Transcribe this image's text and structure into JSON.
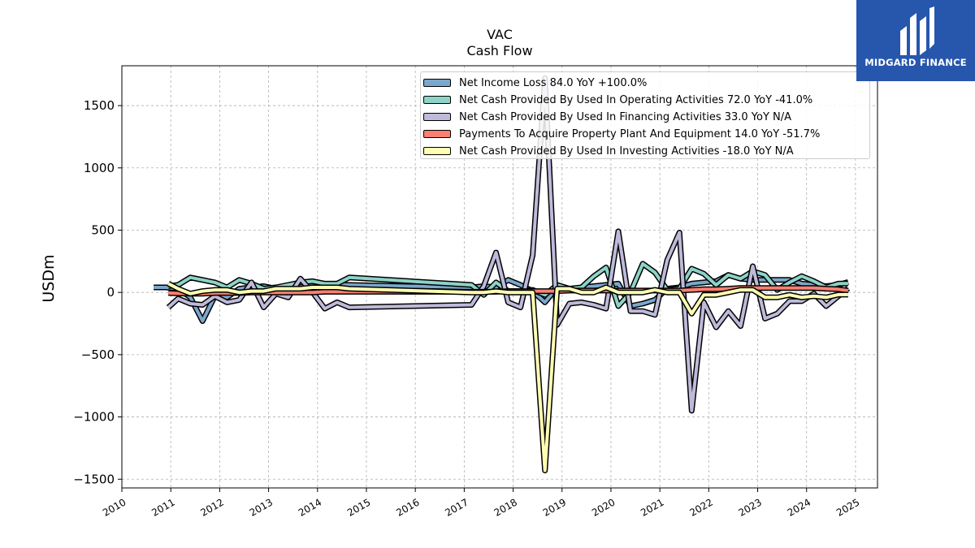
{
  "header": {
    "title": "VAC",
    "subtitle": "Cash Flow"
  },
  "logo": {
    "text": "MIDGARD FINANCE",
    "colors": {
      "background": "#2756ad",
      "foreground": "#ffffff"
    }
  },
  "chart_data": {
    "type": "line",
    "title": "VAC",
    "subtitle": "Cash Flow",
    "xlabel": "",
    "ylabel": "USDm",
    "xlim": [
      2010.0,
      2025.45
    ],
    "ylim": [
      -1570,
      1820
    ],
    "x_ticks": [
      "2010",
      "2011",
      "2012",
      "2013",
      "2014",
      "2015",
      "2016",
      "2017",
      "2018",
      "2019",
      "2020",
      "2021",
      "2022",
      "2023",
      "2024",
      "2025"
    ],
    "y_ticks": [
      "1500",
      "1000",
      "500",
      "0",
      "−500",
      "−1000",
      "−1500"
    ],
    "y_tick_values": [
      1500,
      1000,
      500,
      0,
      -500,
      -1000,
      -1500
    ],
    "grid": true,
    "legend_position": "top-right",
    "series": [
      {
        "name": "Net Income Loss  84.0 YoY +100.0%",
        "color": "#7ba7cc",
        "x": [
          2010.65,
          2010.9,
          2011.15,
          2011.4,
          2011.65,
          2011.9,
          2012.15,
          2012.4,
          2012.65,
          2012.9,
          2013.15,
          2013.4,
          2013.65,
          2013.9,
          2014.15,
          2014.4,
          2014.65,
          2017.15,
          2017.4,
          2017.65,
          2017.9,
          2018.15,
          2018.4,
          2018.65,
          2018.9,
          2019.15,
          2019.4,
          2019.65,
          2019.9,
          2020.15,
          2020.4,
          2020.65,
          2020.9,
          2021.15,
          2021.4,
          2021.65,
          2021.9,
          2022.15,
          2022.4,
          2022.65,
          2022.9,
          2023.15,
          2023.4,
          2023.65,
          2023.9,
          2024.15,
          2024.4,
          2024.65,
          2024.85
        ],
        "y": [
          40,
          40,
          30,
          -40,
          -230,
          -30,
          -40,
          30,
          40,
          50,
          30,
          40,
          60,
          60,
          50,
          60,
          60,
          40,
          50,
          40,
          100,
          60,
          10,
          -80,
          40,
          20,
          40,
          50,
          60,
          70,
          -110,
          -90,
          -60,
          30,
          40,
          70,
          80,
          90,
          140,
          110,
          100,
          100,
          100,
          100,
          70,
          60,
          50,
          60,
          84
        ]
      },
      {
        "name": "Net Cash Provided By Used In Operating Activities  72.0 YoY -41.0%",
        "color": "#8dd3c7",
        "x": [
          2010.95,
          2011.15,
          2011.4,
          2011.65,
          2011.9,
          2012.15,
          2012.4,
          2012.65,
          2012.9,
          2013.15,
          2013.4,
          2013.65,
          2013.9,
          2014.15,
          2014.4,
          2014.65,
          2017.15,
          2017.4,
          2017.65,
          2017.9,
          2018.15,
          2018.4,
          2018.65,
          2018.9,
          2019.15,
          2019.4,
          2019.65,
          2019.9,
          2020.15,
          2020.4,
          2020.65,
          2020.9,
          2021.15,
          2021.4,
          2021.65,
          2021.9,
          2022.15,
          2022.4,
          2022.65,
          2022.9,
          2023.15,
          2023.4,
          2023.65,
          2023.9,
          2024.15,
          2024.4,
          2024.65,
          2024.85
        ],
        "y": [
          50,
          60,
          120,
          100,
          80,
          40,
          100,
          70,
          30,
          40,
          60,
          80,
          90,
          70,
          70,
          120,
          60,
          -20,
          80,
          10,
          10,
          20,
          -20,
          60,
          30,
          40,
          130,
          200,
          -110,
          0,
          230,
          160,
          20,
          30,
          190,
          150,
          60,
          140,
          110,
          170,
          140,
          20,
          80,
          130,
          90,
          40,
          70,
          72
        ]
      },
      {
        "name": "Net Cash Provided By Used In Financing Activities  33.0 YoY N/A",
        "color": "#bebada",
        "x": [
          2010.95,
          2011.15,
          2011.4,
          2011.65,
          2011.9,
          2012.15,
          2012.4,
          2012.65,
          2012.9,
          2013.15,
          2013.4,
          2013.65,
          2013.9,
          2014.15,
          2014.4,
          2014.65,
          2017.15,
          2017.4,
          2017.65,
          2017.9,
          2018.15,
          2018.4,
          2018.65,
          2018.9,
          2019.15,
          2019.4,
          2019.65,
          2019.9,
          2020.15,
          2020.4,
          2020.65,
          2020.9,
          2021.15,
          2021.4,
          2021.65,
          2021.9,
          2022.15,
          2022.4,
          2022.65,
          2022.9,
          2023.15,
          2023.4,
          2023.65,
          2023.9,
          2024.15,
          2024.4,
          2024.65,
          2024.85
        ],
        "y": [
          -120,
          -50,
          -90,
          -100,
          -30,
          -80,
          -60,
          80,
          -120,
          -10,
          -40,
          110,
          0,
          -130,
          -80,
          -120,
          -100,
          50,
          320,
          -80,
          -120,
          300,
          1720,
          -260,
          -90,
          -80,
          -100,
          -130,
          490,
          -150,
          -150,
          -180,
          260,
          480,
          -950,
          -80,
          -280,
          -150,
          -270,
          210,
          -210,
          -170,
          -70,
          -70,
          -10,
          -110,
          -30,
          33
        ]
      },
      {
        "name": "Payments To Acquire Property Plant And Equipment  14.0 YoY -51.7%",
        "color": "#fb8072",
        "x": [
          2010.95,
          2011.15,
          2011.4,
          2011.65,
          2011.9,
          2012.15,
          2012.4,
          2012.65,
          2012.9,
          2013.15,
          2013.4,
          2013.65,
          2013.9,
          2014.15,
          2014.4,
          2014.65,
          2017.15,
          2017.4,
          2017.65,
          2017.9,
          2018.15,
          2018.4,
          2018.65,
          2018.9,
          2019.15,
          2019.4,
          2019.65,
          2019.9,
          2020.15,
          2020.4,
          2020.65,
          2020.9,
          2021.15,
          2021.4,
          2021.65,
          2021.9,
          2022.15,
          2022.4,
          2022.65,
          2022.9,
          2023.15,
          2023.4,
          2023.65,
          2023.9,
          2024.15,
          2024.4,
          2024.65,
          2024.85
        ],
        "y": [
          -5,
          -8,
          -10,
          -10,
          -5,
          -5,
          -5,
          0,
          0,
          0,
          0,
          0,
          0,
          5,
          5,
          5,
          5,
          5,
          5,
          10,
          10,
          10,
          10,
          10,
          15,
          15,
          15,
          15,
          15,
          15,
          15,
          15,
          15,
          15,
          20,
          25,
          25,
          30,
          35,
          35,
          35,
          35,
          35,
          35,
          35,
          30,
          25,
          14
        ]
      },
      {
        "name": "Net Cash Provided By Used In Investing Activities  -18.0 YoY N/A",
        "color": "#ffffb3",
        "x": [
          2010.95,
          2011.15,
          2011.4,
          2011.65,
          2011.9,
          2012.15,
          2012.4,
          2012.65,
          2012.9,
          2013.15,
          2013.4,
          2013.65,
          2013.9,
          2014.15,
          2014.4,
          2014.65,
          2017.15,
          2017.4,
          2017.65,
          2017.9,
          2018.15,
          2018.4,
          2018.65,
          2018.9,
          2019.15,
          2019.4,
          2019.65,
          2019.9,
          2020.15,
          2020.4,
          2020.65,
          2020.9,
          2021.15,
          2021.4,
          2021.65,
          2021.9,
          2022.15,
          2022.4,
          2022.65,
          2022.9,
          2023.15,
          2023.4,
          2023.65,
          2023.9,
          2024.15,
          2024.4,
          2024.65,
          2024.85
        ],
        "y": [
          70,
          30,
          -10,
          10,
          20,
          20,
          0,
          10,
          10,
          30,
          30,
          30,
          40,
          40,
          40,
          30,
          0,
          0,
          10,
          0,
          0,
          0,
          -1430,
          30,
          30,
          0,
          0,
          40,
          0,
          0,
          0,
          20,
          0,
          0,
          -170,
          -20,
          -20,
          0,
          20,
          20,
          -40,
          -40,
          -20,
          -40,
          -30,
          -40,
          -18,
          -18
        ]
      }
    ]
  }
}
